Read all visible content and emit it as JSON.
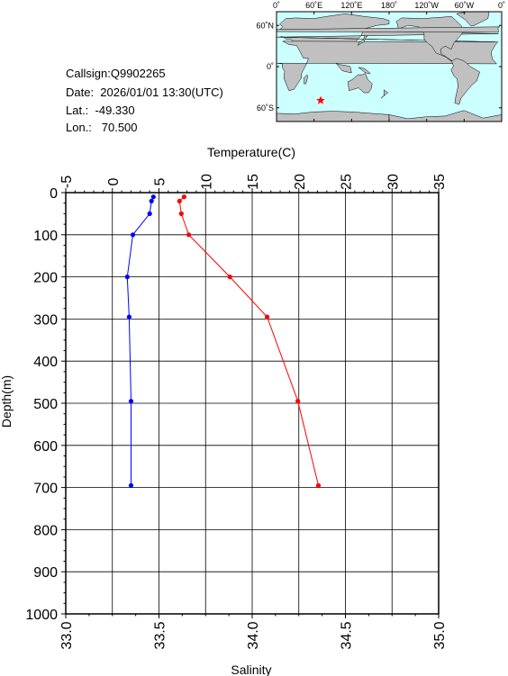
{
  "station": {
    "callsign_line": "Callsign:Q9902265",
    "date_line": "Date:  2026/01/01 13:30(UTC)",
    "lat_line": "Lat.:  -49.330",
    "lon_line": "Lon.:   70.500",
    "lat": -49.33,
    "lon": 70.5
  },
  "map": {
    "top_labels": [
      "0˚",
      "60˚E",
      "120˚E",
      "180˚",
      "120˚W",
      "60˚W",
      "0˚"
    ],
    "left_labels": [
      "60˚N",
      "0˚",
      "60˚S"
    ],
    "ocean_color": "#ccffff",
    "land_color": "#c0c0c0",
    "marker_color": "#ff0000"
  },
  "chart_data": {
    "type": "line",
    "xlabel_top": "Temperature(C)",
    "xlabel_bottom": "Salinity",
    "ylabel": "Depth(m)",
    "temperature_axis": {
      "range": [
        -5,
        35
      ],
      "ticks": [
        "-5",
        "0",
        "5",
        "10",
        "15",
        "20",
        "25",
        "30",
        "35"
      ]
    },
    "salinity_axis": {
      "range": [
        33.0,
        35.0
      ],
      "ticks": [
        "33.0",
        "33.5",
        "34.0",
        "34.5",
        "35.0"
      ]
    },
    "depth_axis": {
      "range": [
        0,
        1000
      ],
      "ticks": [
        "0",
        "100",
        "200",
        "300",
        "400",
        "500",
        "600",
        "700",
        "800",
        "900",
        "1000"
      ],
      "inverted": true
    },
    "grid": true,
    "series": [
      {
        "key": "temperature",
        "axis": "top",
        "color": "#ff0000",
        "points": [
          {
            "t": 7.7,
            "d": 10
          },
          {
            "t": 7.2,
            "d": 20
          },
          {
            "t": 7.4,
            "d": 50
          },
          {
            "t": 8.2,
            "d": 100
          },
          {
            "t": 12.6,
            "d": 200
          },
          {
            "t": 16.6,
            "d": 295
          },
          {
            "t": 19.9,
            "d": 495
          },
          {
            "t": 22.1,
            "d": 695
          }
        ]
      },
      {
        "key": "salinity",
        "axis": "bottom",
        "color": "#0000ff",
        "points": [
          {
            "s": 33.47,
            "d": 10
          },
          {
            "s": 33.46,
            "d": 20
          },
          {
            "s": 33.45,
            "d": 50
          },
          {
            "s": 33.36,
            "d": 100
          },
          {
            "s": 33.33,
            "d": 200
          },
          {
            "s": 33.34,
            "d": 295
          },
          {
            "s": 33.35,
            "d": 495
          },
          {
            "s": 33.35,
            "d": 695
          }
        ]
      }
    ]
  }
}
